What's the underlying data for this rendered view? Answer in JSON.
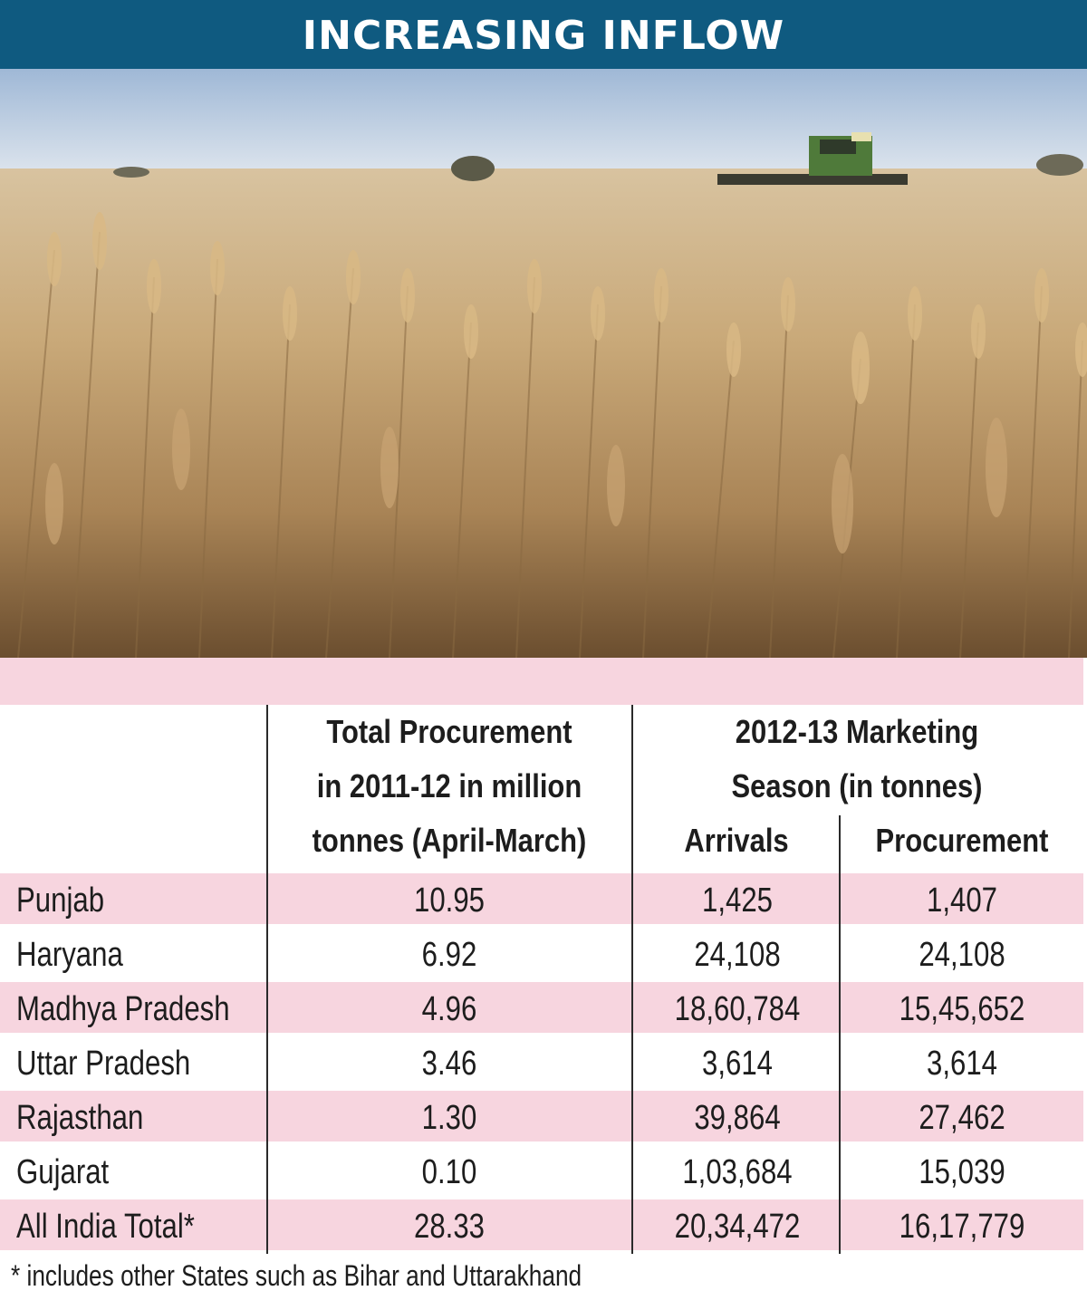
{
  "header": {
    "title": "INCREASING INFLOW"
  },
  "photo": {
    "subject": "wheat-field-with-combine-harvester"
  },
  "table": {
    "col1_header": [
      "Total Procurement",
      "in 2011-12 in million",
      "tonnes (April-March)"
    ],
    "group_header": [
      "2012-13 Marketing",
      "Season (in tonnes)"
    ],
    "sub_headers": {
      "arrivals": "Arrivals",
      "procurement": "Procurement"
    },
    "rows": [
      {
        "state": "Punjab",
        "total": "10.95",
        "arrivals": "1,425",
        "procurement": "1,407"
      },
      {
        "state": "Haryana",
        "total": "6.92",
        "arrivals": "24,108",
        "procurement": "24,108"
      },
      {
        "state": "Madhya Pradesh",
        "total": "4.96",
        "arrivals": "18,60,784",
        "procurement": "15,45,652"
      },
      {
        "state": "Uttar Pradesh",
        "total": "3.46",
        "arrivals": "3,614",
        "procurement": "3,614"
      },
      {
        "state": "Rajasthan",
        "total": "1.30",
        "arrivals": "39,864",
        "procurement": "27,462"
      },
      {
        "state": "Gujarat",
        "total": "0.10",
        "arrivals": "1,03,684",
        "procurement": "15,039"
      },
      {
        "state": "All India Total*",
        "total": "28.33",
        "arrivals": "20,34,472",
        "procurement": "16,17,779"
      }
    ]
  },
  "footnote": "* includes other States such as Bihar and Uttarakhand",
  "colors": {
    "title_bg": "#0f5a80",
    "row_pink": "#f7d5df",
    "text": "#1d1d1d"
  }
}
